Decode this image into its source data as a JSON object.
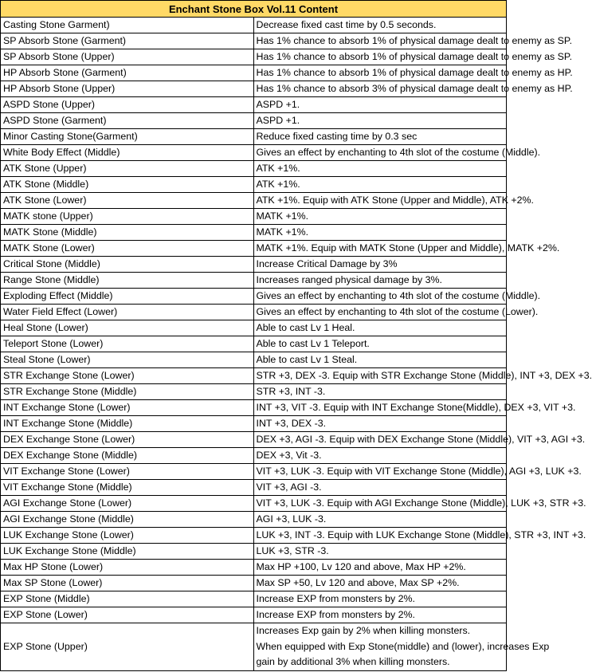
{
  "title": "Enchant Stone Box Vol.11 Content",
  "rows": [
    {
      "name": "Casting Stone Garment)",
      "effect": "Decrease fixed cast time by 0.5 seconds."
    },
    {
      "name": "SP Absorb Stone (Garment)",
      "effect": "Has 1% chance to absorb 1% of physical damage dealt to enemy as SP."
    },
    {
      "name": "SP Absorb Stone (Upper)",
      "effect": "Has 1% chance to absorb 1% of physical damage dealt to enemy as SP."
    },
    {
      "name": "HP Absorb Stone (Garment)",
      "effect": "Has 1% chance to absorb 1% of physical damage dealt to enemy as HP."
    },
    {
      "name": "HP Absorb Stone (Upper)",
      "effect": "Has 1% chance to absorb 3% of physical damage dealt to enemy as HP."
    },
    {
      "name": "ASPD Stone (Upper)",
      "effect": "ASPD +1."
    },
    {
      "name": "ASPD Stone (Garment)",
      "effect": "ASPD +1."
    },
    {
      "name": "Minor Casting Stone(Garment)",
      "effect": "Reduce fixed casting time by 0.3 sec"
    },
    {
      "name": "White Body Effect (Middle)",
      "effect": "Gives an effect by enchanting to 4th slot of the costume (Middle)."
    },
    {
      "name": "ATK Stone (Upper)",
      "effect": "ATK +1%."
    },
    {
      "name": "ATK Stone (Middle)",
      "effect": "ATK +1%."
    },
    {
      "name": "ATK Stone (Lower)",
      "effect": "ATK +1%. Equip with ATK Stone (Upper and Middle), ATK +2%."
    },
    {
      "name": "MATK stone (Upper)",
      "effect": "MATK +1%."
    },
    {
      "name": "MATK Stone (Middle)",
      "effect": "MATK +1%."
    },
    {
      "name": "MATK Stone (Lower)",
      "effect": "MATK +1%. Equip with MATK Stone (Upper and Middle), MATK +2%."
    },
    {
      "name": "Critical Stone (Middle)",
      "effect": "Increase Critical Damage by 3%"
    },
    {
      "name": "Range Stone (Middle)",
      "effect": "Increases ranged physical damage by 3%."
    },
    {
      "name": "Exploding Effect (Middle)",
      "effect": "Gives an effect by enchanting to 4th slot of the costume (Middle)."
    },
    {
      "name": "Water Field Effect (Lower)",
      "effect": "Gives an effect by enchanting to 4th slot of the costume (Lower)."
    },
    {
      "name": "Heal Stone (Lower)",
      "effect": "Able to cast Lv 1 Heal."
    },
    {
      "name": "Teleport Stone (Lower)",
      "effect": "Able to cast Lv 1 Teleport."
    },
    {
      "name": "Steal Stone (Lower)",
      "effect": "Able to cast Lv 1 Steal."
    },
    {
      "name": "STR Exchange Stone (Lower)",
      "effect": "STR +3, DEX -3. Equip with STR Exchange Stone (Middle), INT +3, DEX +3."
    },
    {
      "name": "STR Exchange Stone (Middle)",
      "effect": "STR +3, INT -3."
    },
    {
      "name": "INT Exchange Stone (Lower)",
      "effect": "INT +3, VIT -3. Equip with INT Exchange Stone(Middle), DEX +3, VIT +3."
    },
    {
      "name": "INT Exchange Stone (Middle)",
      "effect": "INT +3, DEX -3."
    },
    {
      "name": "DEX Exchange Stone (Lower)",
      "effect": "DEX +3, AGI -3. Equip with DEX Exchange Stone (Middle), VIT +3, AGI +3."
    },
    {
      "name": "DEX Exchange Stone (Middle)",
      "effect": "DEX +3, Vit -3."
    },
    {
      "name": "VIT Exchange Stone (Lower)",
      "effect": "VIT +3, LUK -3. Equip with VIT Exchange Stone (Middle), AGI +3, LUK +3."
    },
    {
      "name": "VIT Exchange Stone (Middle)",
      "effect": "VIT +3, AGI -3."
    },
    {
      "name": "AGI Exchange Stone (Lower)",
      "effect": "VIT +3, LUK -3. Equip with AGI Exchange Stone (Middle), LUK +3, STR +3."
    },
    {
      "name": "AGI Exchange Stone (Middle)",
      "effect": "AGI +3, LUK -3."
    },
    {
      "name": "LUK Exchange Stone (Lower)",
      "effect": "LUK +3, INT -3. Equip with LUK Exchange Stone (Middle), STR +3, INT +3."
    },
    {
      "name": "LUK Exchange Stone (Middle)",
      "effect": "LUK +3, STR -3."
    },
    {
      "name": "Max HP Stone (Lower)",
      "effect": "Max HP +100, Lv 120 and above, Max HP +2%."
    },
    {
      "name": "Max SP Stone (Lower)",
      "effect": "Max SP +50, Lv 120 and above, Max SP +2%."
    },
    {
      "name": "EXP Stone (Middle)",
      "effect": "Increase EXP from monsters by 2%."
    },
    {
      "name": "EXP Stone (Lower)",
      "effect": "Increase EXP from monsters by 2%."
    }
  ],
  "last_row": {
    "name": "EXP Stone (Upper)",
    "effect_lines": [
      "Increases Exp gain by 2% when killing monsters.",
      "When equipped with Exp Stone(middle) and (lower), increases Exp",
      "gain by additional 3% when killing monsters."
    ]
  },
  "colors": {
    "header_bg": "#ffd966"
  }
}
